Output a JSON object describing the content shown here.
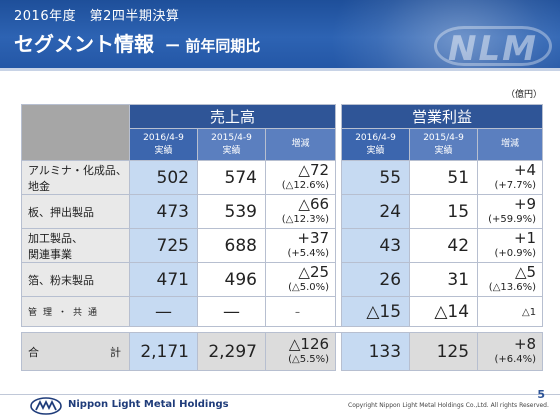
{
  "header": {
    "subtitle": "2016年度　第2四半期決算",
    "title": "セグメント情報",
    "sub_title": "ー 前年同期比",
    "watermark": "NLM"
  },
  "unit": "（億円）",
  "groups": {
    "sales": "売上高",
    "op_income": "営業利益"
  },
  "subheaders": {
    "p2016": [
      "2016/4-9",
      "実績"
    ],
    "p2015": [
      "2015/4-9",
      "実績"
    ],
    "chg": "増減"
  },
  "rows": [
    {
      "label_l1": "アルミナ・化成品、",
      "label_l2": "地金",
      "s16": "502",
      "s15": "574",
      "s_chg": "△72",
      "s_pct": "(△12.6%)",
      "o16": "55",
      "o15": "51",
      "o_chg": "+4",
      "o_pct": "(+7.7%)"
    },
    {
      "label_l1": "板、押出製品",
      "label_l2": "",
      "s16": "473",
      "s15": "539",
      "s_chg": "△66",
      "s_pct": "(△12.3%)",
      "o16": "24",
      "o15": "15",
      "o_chg": "+9",
      "o_pct": "(+59.9%)"
    },
    {
      "label_l1": "加工製品、",
      "label_l2": "関連事業",
      "s16": "725",
      "s15": "688",
      "s_chg": "+37",
      "s_pct": "(+5.4%)",
      "o16": "43",
      "o15": "42",
      "o_chg": "+1",
      "o_pct": "(+0.9%)"
    },
    {
      "label_l1": "箔、粉末製品",
      "label_l2": "",
      "s16": "471",
      "s15": "496",
      "s_chg": "△25",
      "s_pct": "(△5.0%)",
      "o16": "26",
      "o15": "31",
      "o_chg": "△5",
      "o_pct": "(△13.6%)"
    }
  ],
  "common": {
    "label": "管理・共通",
    "s16": "—",
    "s15": "—",
    "s_chg": "–",
    "o16": "△15",
    "o15": "△14",
    "o_chg": "△1"
  },
  "total": {
    "label_a": "合",
    "label_b": "計",
    "s16": "2,171",
    "s15": "2,297",
    "s_chg": "△126",
    "s_pct": "(△5.5%)",
    "o16": "133",
    "o15": "125",
    "o_chg": "+8",
    "o_pct": "(+6.4%)"
  },
  "footer": {
    "company": "Nippon Light Metal Holdings",
    "copyright": "Copyright Nippon Light Metal Holdings Co.,Ltd. All rights Reserved.",
    "page": "5"
  },
  "colors": {
    "header_blue": "#2d63b3",
    "group_header": "#2f5597",
    "highlight": "#c6daf2",
    "label_gray": "#e9e9e9"
  }
}
